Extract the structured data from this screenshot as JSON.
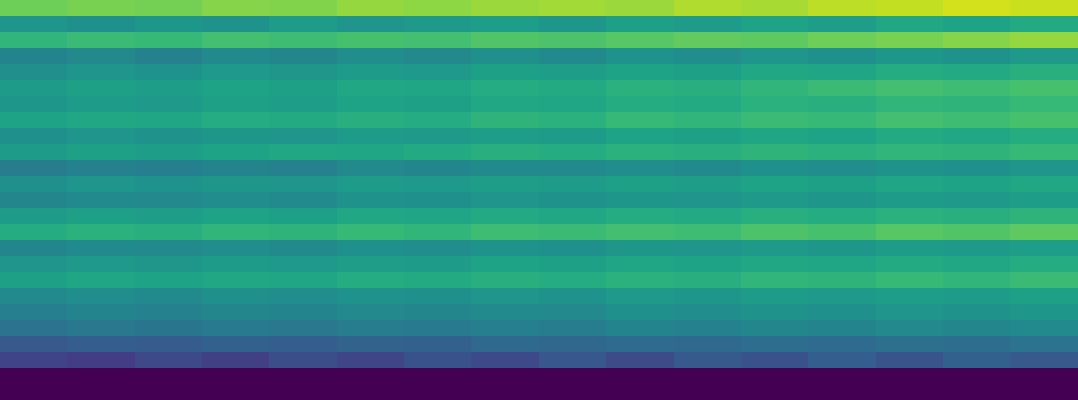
{
  "chart_data": {
    "type": "heatmap",
    "color": "viridis",
    "tick_labels": false,
    "color_range": [
      0,
      1
    ],
    "cells": [
      [
        0.78,
        0.8,
        0.79,
        0.82,
        0.81,
        0.84,
        0.83,
        0.85,
        0.86,
        0.85,
        0.88,
        0.87,
        0.9,
        0.91,
        0.93,
        0.92
      ],
      [
        0.52,
        0.5,
        0.53,
        0.51,
        0.55,
        0.52,
        0.54,
        0.56,
        0.53,
        0.57,
        0.55,
        0.58,
        0.56,
        0.6,
        0.58,
        0.61
      ],
      [
        0.66,
        0.68,
        0.67,
        0.7,
        0.69,
        0.71,
        0.7,
        0.73,
        0.72,
        0.74,
        0.76,
        0.75,
        0.78,
        0.8,
        0.82,
        0.84
      ],
      [
        0.45,
        0.47,
        0.44,
        0.48,
        0.46,
        0.49,
        0.47,
        0.5,
        0.48,
        0.51,
        0.49,
        0.52,
        0.5,
        0.53,
        0.51,
        0.54
      ],
      [
        0.5,
        0.52,
        0.51,
        0.54,
        0.53,
        0.55,
        0.54,
        0.57,
        0.56,
        0.58,
        0.57,
        0.6,
        0.59,
        0.62,
        0.61,
        0.63
      ],
      [
        0.55,
        0.57,
        0.56,
        0.58,
        0.57,
        0.6,
        0.59,
        0.62,
        0.61,
        0.64,
        0.63,
        0.66,
        0.68,
        0.7,
        0.69,
        0.71
      ],
      [
        0.53,
        0.55,
        0.54,
        0.57,
        0.56,
        0.58,
        0.57,
        0.6,
        0.59,
        0.62,
        0.61,
        0.64,
        0.63,
        0.66,
        0.65,
        0.67
      ],
      [
        0.58,
        0.6,
        0.59,
        0.62,
        0.61,
        0.63,
        0.62,
        0.65,
        0.64,
        0.67,
        0.66,
        0.68,
        0.67,
        0.7,
        0.69,
        0.71
      ],
      [
        0.5,
        0.52,
        0.51,
        0.53,
        0.52,
        0.55,
        0.54,
        0.56,
        0.55,
        0.58,
        0.57,
        0.59,
        0.58,
        0.61,
        0.6,
        0.62
      ],
      [
        0.55,
        0.57,
        0.56,
        0.58,
        0.6,
        0.59,
        0.61,
        0.63,
        0.62,
        0.64,
        0.63,
        0.65,
        0.64,
        0.66,
        0.65,
        0.67
      ],
      [
        0.42,
        0.44,
        0.43,
        0.45,
        0.44,
        0.47,
        0.46,
        0.48,
        0.47,
        0.49,
        0.48,
        0.5,
        0.49,
        0.51,
        0.5,
        0.52
      ],
      [
        0.5,
        0.52,
        0.51,
        0.53,
        0.52,
        0.55,
        0.54,
        0.56,
        0.55,
        0.57,
        0.56,
        0.58,
        0.57,
        0.59,
        0.58,
        0.6
      ],
      [
        0.46,
        0.48,
        0.47,
        0.49,
        0.48,
        0.51,
        0.5,
        0.52,
        0.51,
        0.53,
        0.52,
        0.54,
        0.53,
        0.55,
        0.54,
        0.56
      ],
      [
        0.55,
        0.57,
        0.56,
        0.58,
        0.57,
        0.6,
        0.59,
        0.61,
        0.6,
        0.62,
        0.61,
        0.63,
        0.62,
        0.64,
        0.63,
        0.65
      ],
      [
        0.62,
        0.64,
        0.63,
        0.66,
        0.65,
        0.67,
        0.66,
        0.69,
        0.68,
        0.7,
        0.69,
        0.72,
        0.71,
        0.74,
        0.73,
        0.75
      ],
      [
        0.46,
        0.48,
        0.47,
        0.49,
        0.48,
        0.5,
        0.49,
        0.51,
        0.5,
        0.53,
        0.52,
        0.54,
        0.53,
        0.55,
        0.54,
        0.56
      ],
      [
        0.52,
        0.54,
        0.53,
        0.55,
        0.54,
        0.56,
        0.55,
        0.58,
        0.57,
        0.59,
        0.58,
        0.6,
        0.59,
        0.61,
        0.6,
        0.62
      ],
      [
        0.57,
        0.59,
        0.58,
        0.6,
        0.59,
        0.62,
        0.61,
        0.63,
        0.62,
        0.64,
        0.63,
        0.66,
        0.65,
        0.67,
        0.66,
        0.68
      ],
      [
        0.47,
        0.49,
        0.48,
        0.5,
        0.49,
        0.51,
        0.5,
        0.52,
        0.51,
        0.54,
        0.53,
        0.55,
        0.54,
        0.56,
        0.55,
        0.57
      ],
      [
        0.43,
        0.45,
        0.44,
        0.46,
        0.45,
        0.47,
        0.46,
        0.48,
        0.47,
        0.5,
        0.49,
        0.51,
        0.5,
        0.52,
        0.51,
        0.53
      ],
      [
        0.38,
        0.4,
        0.39,
        0.41,
        0.4,
        0.42,
        0.41,
        0.43,
        0.42,
        0.45,
        0.44,
        0.46,
        0.45,
        0.47,
        0.46,
        0.48
      ],
      [
        0.28,
        0.3,
        0.29,
        0.31,
        0.3,
        0.32,
        0.31,
        0.34,
        0.33,
        0.35,
        0.34,
        0.36,
        0.35,
        0.37,
        0.36,
        0.38
      ],
      [
        0.2,
        0.18,
        0.22,
        0.19,
        0.24,
        0.21,
        0.25,
        0.22,
        0.27,
        0.23,
        0.28,
        0.25,
        0.3,
        0.26,
        0.31,
        0.28
      ],
      [
        0.0,
        0.0,
        0.0,
        0.0,
        0.0,
        0.0,
        0.0,
        0.0,
        0.0,
        0.0,
        0.0,
        0.0,
        0.0,
        0.0,
        0.0,
        0.0
      ],
      [
        0.0,
        0.0,
        0.0,
        0.0,
        0.0,
        0.0,
        0.0,
        0.0,
        0.0,
        0.0,
        0.0,
        0.0,
        0.0,
        0.0,
        0.0,
        0.0
      ]
    ]
  }
}
